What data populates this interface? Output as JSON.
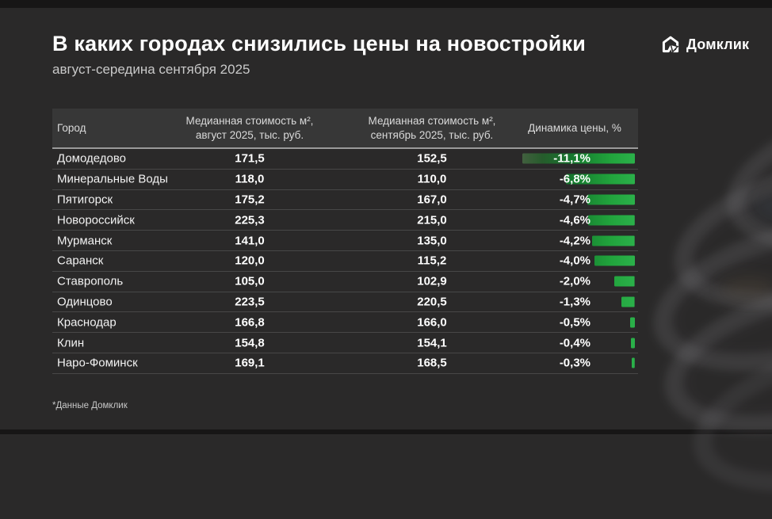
{
  "page": {
    "title": "В каких городах снизились цены на новостройки",
    "subtitle": "август-середина сентября 2025",
    "footnote": "*Данные Домклик",
    "brand": {
      "name": "Домклик"
    }
  },
  "colors": {
    "background": "#2a2929",
    "table_header_bg": "#373737",
    "header_underline": "#9a9a9a",
    "row_divider": "#474747",
    "bar_green": "#21a038",
    "bar_green_bright": "#2bb14a",
    "bar_green_dark": "#265c2c",
    "text_primary": "#ffffff",
    "text_secondary": "#c9c9c9"
  },
  "table": {
    "columns": [
      {
        "id": "city",
        "label": "Город"
      },
      {
        "id": "aug",
        "label_line1": "Медианная стоимость м²,",
        "label_line2": "август 2025, тыс. руб."
      },
      {
        "id": "sep",
        "label_line1": "Медианная стоимость м²,",
        "label_line2": "сентябрь 2025, тыс. руб."
      },
      {
        "id": "dyn",
        "label": "Динамика цены, %"
      }
    ],
    "rows": [
      {
        "city": "Домодедово",
        "aug": "171,5",
        "sep": "152,5",
        "change_label": "-11,1%",
        "change_value": -11.1
      },
      {
        "city": "Минеральные Воды",
        "aug": "118,0",
        "sep": "110,0",
        "change_label": "-6,8%",
        "change_value": -6.8
      },
      {
        "city": "Пятигорск",
        "aug": "175,2",
        "sep": "167,0",
        "change_label": "-4,7%",
        "change_value": -4.7
      },
      {
        "city": "Новороссийск",
        "aug": "225,3",
        "sep": "215,0",
        "change_label": "-4,6%",
        "change_value": -4.6
      },
      {
        "city": "Мурманск",
        "aug": "141,0",
        "sep": "135,0",
        "change_label": "-4,2%",
        "change_value": -4.2
      },
      {
        "city": "Саранск",
        "aug": "120,0",
        "sep": "115,2",
        "change_label": "-4,0%",
        "change_value": -4.0
      },
      {
        "city": "Ставрополь",
        "aug": "105,0",
        "sep": "102,9",
        "change_label": "-2,0%",
        "change_value": -2.0
      },
      {
        "city": "Одинцово",
        "aug": "223,5",
        "sep": "220,5",
        "change_label": "-1,3%",
        "change_value": -1.3
      },
      {
        "city": "Краснодар",
        "aug": "166,8",
        "sep": "166,0",
        "change_label": "-0,5%",
        "change_value": -0.5
      },
      {
        "city": "Клин",
        "aug": "154,8",
        "sep": "154,1",
        "change_label": "-0,4%",
        "change_value": -0.4
      },
      {
        "city": "Наро-Фоминск",
        "aug": "169,1",
        "sep": "168,5",
        "change_label": "-0,3%",
        "change_value": -0.3
      }
    ]
  },
  "chart_data": {
    "type": "table",
    "title": "В каких городах снизились цены на новостройки",
    "subtitle": "август-середина сентября 2025",
    "categories": [
      "Домодедово",
      "Минеральные Воды",
      "Пятигорск",
      "Новороссийск",
      "Мурманск",
      "Саранск",
      "Ставрополь",
      "Одинцово",
      "Краснодар",
      "Клин",
      "Наро-Фоминск"
    ],
    "series": [
      {
        "name": "Медианная стоимость м², август 2025, тыс. руб.",
        "values": [
          171.5,
          118.0,
          175.2,
          225.3,
          141.0,
          120.0,
          105.0,
          223.5,
          166.8,
          154.8,
          169.1
        ]
      },
      {
        "name": "Медианная стоимость м², сентябрь 2025, тыс. руб.",
        "values": [
          152.5,
          110.0,
          167.0,
          215.0,
          135.0,
          115.2,
          102.9,
          220.5,
          166.0,
          154.1,
          168.5
        ]
      },
      {
        "name": "Динамика цены, %",
        "values": [
          -11.1,
          -6.8,
          -4.7,
          -4.6,
          -4.2,
          -4.0,
          -2.0,
          -1.3,
          -0.5,
          -0.4,
          -0.3
        ]
      }
    ],
    "bar_axis_range": [
      0,
      11.1
    ],
    "bar_color": "#21a038",
    "legend": "none",
    "grid": false
  }
}
